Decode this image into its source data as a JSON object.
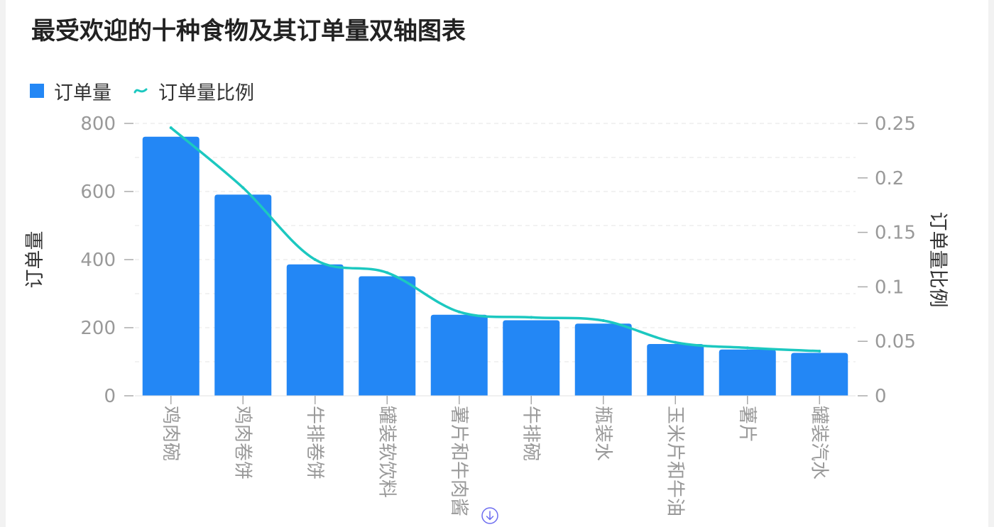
{
  "title": "最受欢迎的十种食物及其订单量双轴图表",
  "colors": {
    "bar": "#2387f5",
    "line": "#1cc8c0",
    "axis_text": "#999999",
    "axis_label": "#333333",
    "grid": "#e6e6e6"
  },
  "legend": {
    "bar_label": "订单量",
    "line_label": "订单量比例",
    "position": "top-left"
  },
  "download_icon": "download-icon",
  "chart_data": {
    "type": "bar",
    "title": "最受欢迎的十种食物及其订单量双轴图表",
    "categories": [
      "鸡肉碗",
      "鸡肉卷饼",
      "牛排卷饼",
      "罐装软饮料",
      "薯片和牛肉酱",
      "牛排碗",
      "瓶装水",
      "玉米片和牛油",
      "薯片",
      "罐装汽水"
    ],
    "series": [
      {
        "name": "订单量",
        "type": "bar",
        "axis": "left",
        "values": [
          761,
          591,
          386,
          351,
          238,
          222,
          212,
          152,
          136,
          126
        ]
      },
      {
        "name": "订单量比例",
        "type": "line",
        "axis": "right",
        "values": [
          0.246,
          0.191,
          0.125,
          0.113,
          0.077,
          0.072,
          0.069,
          0.049,
          0.044,
          0.041
        ]
      }
    ],
    "ylabel": "订单量",
    "ylabel_right": "订单量比例",
    "ylim": [
      0,
      800
    ],
    "ylim_right": [
      0,
      0.25
    ],
    "yticks": [
      "0",
      "200",
      "400",
      "600",
      "800"
    ],
    "yticks_right": [
      "0",
      "0.05",
      "0.1",
      "0.15",
      "0.2",
      "0.25"
    ],
    "grid": true,
    "legend_position": "top-left"
  }
}
